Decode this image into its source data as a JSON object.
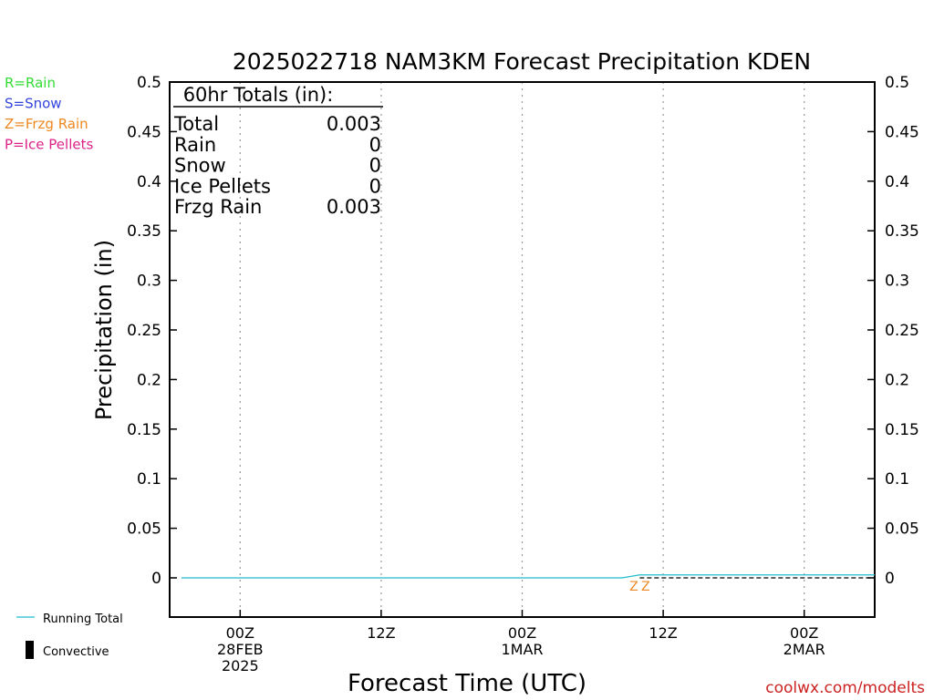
{
  "chart_data": {
    "type": "line",
    "title": "2025022718 NAM3KM Forecast Precipitation KDEN",
    "xlabel": "Forecast Time (UTC)",
    "ylabel": "Precipitation (in)",
    "ylim": [
      0,
      0.5
    ],
    "y_ticks": [
      "0",
      "0.05",
      "0.1",
      "0.15",
      "0.2",
      "0.25",
      "0.3",
      "0.35",
      "0.4",
      "0.45",
      "0.5"
    ],
    "x_ticks": [
      {
        "hour": 6,
        "lines": [
          "00Z",
          "28FEB",
          "2025"
        ]
      },
      {
        "hour": 18,
        "lines": [
          "12Z"
        ]
      },
      {
        "hour": 30,
        "lines": [
          "00Z",
          "1MAR"
        ]
      },
      {
        "hour": 42,
        "lines": [
          "12Z"
        ]
      },
      {
        "hour": 54,
        "lines": [
          "00Z",
          "2MAR"
        ]
      }
    ],
    "xlim_hours": [
      0,
      60
    ],
    "grid": "dotted vertical at tick marks",
    "totals_box": {
      "header": "60hr Totals (in):",
      "rows": [
        {
          "label": "Total",
          "value": "0.003"
        },
        {
          "label": "Rain",
          "value": "0"
        },
        {
          "label": "Snow",
          "value": "0"
        },
        {
          "label": "Ice Pellets",
          "value": "0"
        },
        {
          "label": "Frzg Rain",
          "value": "0.003"
        }
      ]
    },
    "type_legend": [
      {
        "text": "R=Rain",
        "color": "#33dd33"
      },
      {
        "text": "S=Snow",
        "color": "#3344dd"
      },
      {
        "text": "Z=Frzg Rain",
        "color": "#ee8822"
      },
      {
        "text": "P=Ice Pellets",
        "color": "#dd2288"
      }
    ],
    "line_legend": [
      {
        "text": "Running Total",
        "color": "#22bbcc"
      },
      {
        "text": "Convective",
        "color": "#000000"
      }
    ],
    "series": [
      {
        "name": "Running Total",
        "color": "#22bbcc",
        "x": [
          1,
          38.5,
          40,
          60
        ],
        "y": [
          0,
          0,
          0.003,
          0.003
        ]
      }
    ],
    "ptype_markers": [
      {
        "hour": 39.5,
        "text": "Z",
        "color": "#ee8822"
      },
      {
        "hour": 40.5,
        "text": "Z",
        "color": "#ee8822"
      }
    ],
    "credit": "coolwx.com/modelts",
    "credit_color": "#cc2222"
  }
}
